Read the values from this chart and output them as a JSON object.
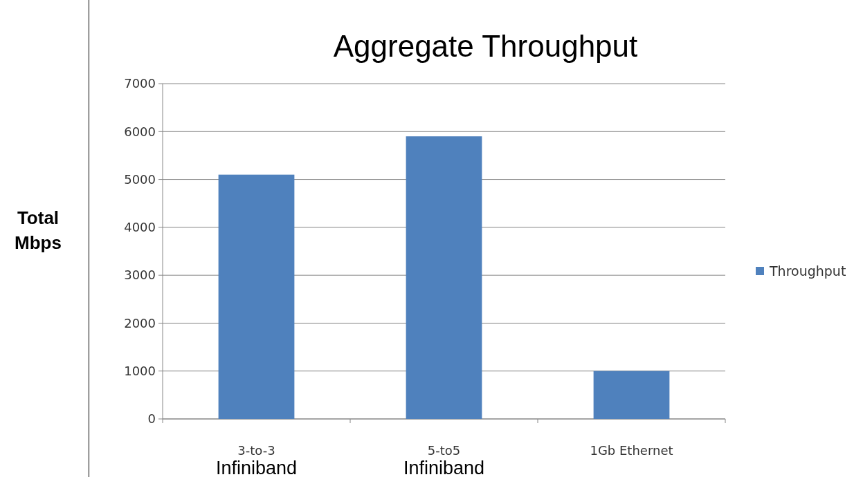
{
  "chart_data": {
    "type": "bar",
    "title": "Aggregate Throughput",
    "ylabel": "Total Mbps",
    "categories": [
      "3-to-3",
      "5-to5",
      "1Gb Ethernet"
    ],
    "series": [
      {
        "name": "Throughput",
        "color": "#4f81bd",
        "values": [
          5100,
          5900,
          1000
        ]
      }
    ],
    "ylim": [
      0,
      7000
    ],
    "yticks": [
      0,
      1000,
      2000,
      3000,
      4000,
      5000,
      6000,
      7000
    ],
    "grid": "y",
    "legend": "right",
    "annotations": [
      "Infiniband",
      "Infiniband"
    ]
  }
}
